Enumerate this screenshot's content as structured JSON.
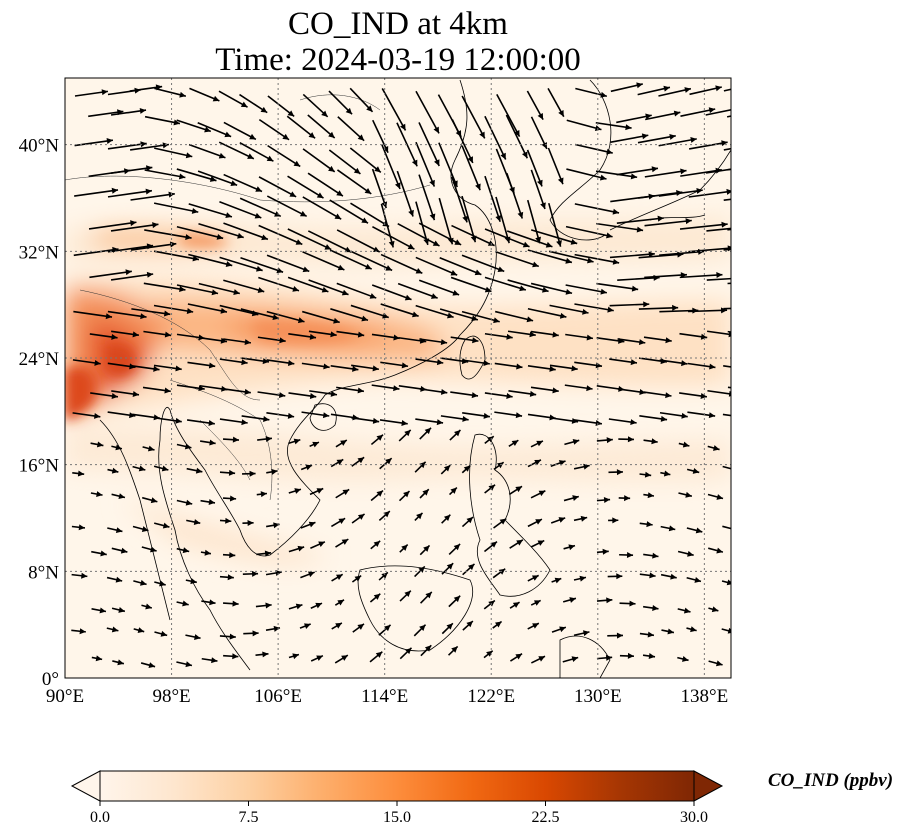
{
  "title_line1": "CO_IND at 4km",
  "title_line2": "Time: 2024-03-19 12:00:00",
  "map": {
    "lon_range": [
      90,
      140
    ],
    "lat_range": [
      0,
      45
    ],
    "lon_ticks": [
      {
        "value": 90,
        "label": "90°E"
      },
      {
        "value": 98,
        "label": "98°E"
      },
      {
        "value": 106,
        "label": "106°E"
      },
      {
        "value": 114,
        "label": "114°E"
      },
      {
        "value": 122,
        "label": "122°E"
      },
      {
        "value": 130,
        "label": "130°E"
      },
      {
        "value": 138,
        "label": "138°E"
      }
    ],
    "lat_ticks": [
      {
        "value": 0,
        "label": "0°"
      },
      {
        "value": 8,
        "label": "8°N"
      },
      {
        "value": 16,
        "label": "16°N"
      },
      {
        "value": 24,
        "label": "24°N"
      },
      {
        "value": 32,
        "label": "32°N"
      },
      {
        "value": 40,
        "label": "40°N"
      }
    ],
    "gridlines": true
  },
  "colorbar": {
    "label": "CO_IND (ppbv)",
    "min": 0,
    "max": 30,
    "ticks": [
      "0.0",
      "7.5",
      "15.0",
      "22.5",
      "30.0"
    ],
    "extend": "both",
    "colors": [
      "#fff5eb",
      "#fee6ce",
      "#fdd0a2",
      "#fdae6b",
      "#fd8d3c",
      "#f16913",
      "#d94801",
      "#a63603",
      "#7f2704"
    ]
  }
}
